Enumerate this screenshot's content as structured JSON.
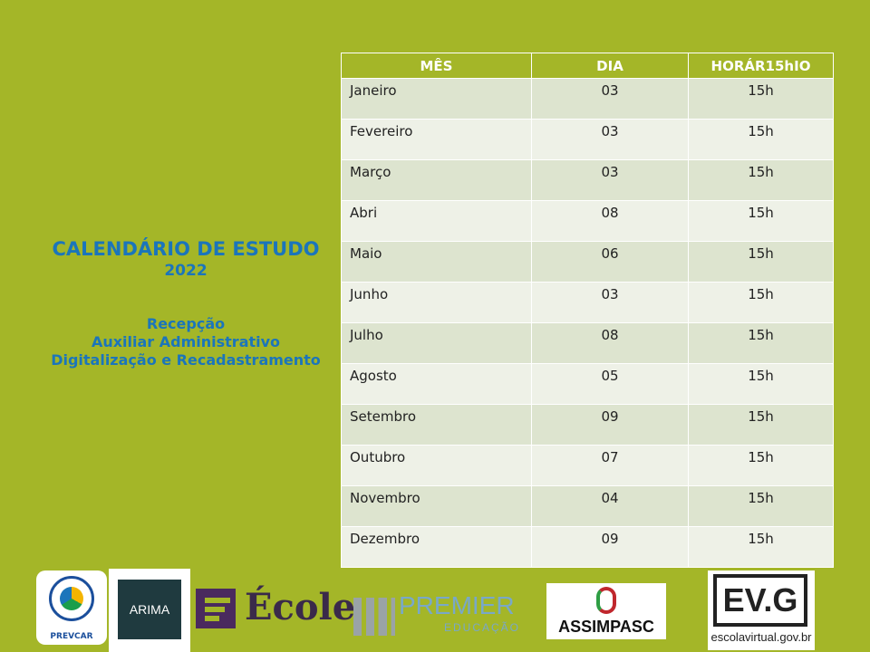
{
  "sidebar": {
    "title": "CALENDÁRIO DE ESTUDO",
    "year": "2022",
    "subjects": [
      "Recepção",
      "Auxiliar Administrativo",
      "Digitalização e Recadastramento"
    ]
  },
  "table": {
    "headers": [
      "MÊS",
      "DIA",
      "HORÁR15hIO"
    ],
    "rows": [
      [
        "Janeiro",
        "03",
        "15h"
      ],
      [
        "Fevereiro",
        "03",
        "15h"
      ],
      [
        "Março",
        "03",
        "15h"
      ],
      [
        "Abri",
        "08",
        "15h"
      ],
      [
        "Maio",
        "06",
        "15h"
      ],
      [
        "Junho",
        "03",
        "15h"
      ],
      [
        "Julho",
        "08",
        "15h"
      ],
      [
        "Agosto",
        "05",
        "15h"
      ],
      [
        "Setembro",
        "09",
        "15h"
      ],
      [
        "Outubro",
        "07",
        "15h"
      ],
      [
        "Novembro",
        "04",
        "15h"
      ],
      [
        "Dezembro",
        "09",
        "15h"
      ]
    ]
  },
  "logos": {
    "prevcar": "PREVCAR",
    "arima": "ARIMA",
    "ecole": "École",
    "premier": "PREMIER",
    "premier_sub": "EDUCAÇÃO",
    "assimpasc": "ASSIMPASC",
    "evg": "EV.G",
    "evg_url": "escolavirtual.gov.br"
  },
  "colors": {
    "background": "#a4b628",
    "title": "#1b75bb",
    "row_dark": "#dde4cf",
    "row_light": "#eef1e7"
  }
}
